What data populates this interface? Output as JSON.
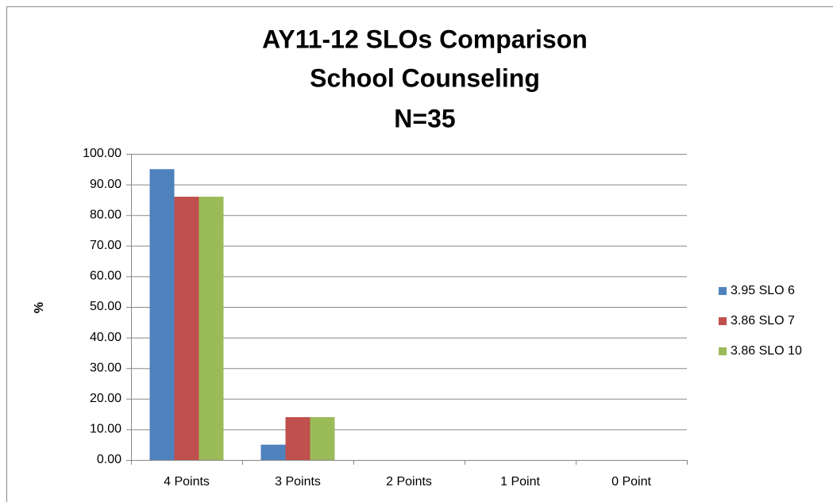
{
  "chart_data": {
    "type": "bar",
    "title": [
      "AY11-12 SLOs Comparison",
      "School Counseling",
      "N=35"
    ],
    "y_label": "%",
    "categories": [
      "4 Points",
      "3 Points",
      "2 Points",
      "1 Point",
      "0 Point"
    ],
    "series": [
      {
        "name": "3.95 SLO 6",
        "color": "#4f81bd",
        "values": [
          95,
          5,
          0,
          0,
          0
        ]
      },
      {
        "name": "3.86 SLO 7",
        "color": "#c0504d",
        "values": [
          86,
          14,
          0,
          0,
          0
        ]
      },
      {
        "name": "3.86 SLO 10",
        "color": "#9bbb59",
        "values": [
          86,
          14,
          0,
          0,
          0
        ]
      }
    ],
    "ylim": [
      0,
      100
    ],
    "yticks": [
      {
        "value": 0,
        "label": "0.00"
      },
      {
        "value": 10,
        "label": "10.00"
      },
      {
        "value": 20,
        "label": "20.00"
      },
      {
        "value": 30,
        "label": "30.00"
      },
      {
        "value": 40,
        "label": "40.00"
      },
      {
        "value": 50,
        "label": "50.00"
      },
      {
        "value": 60,
        "label": "60.00"
      },
      {
        "value": 70,
        "label": "70.00"
      },
      {
        "value": 80,
        "label": "80.00"
      },
      {
        "value": 90,
        "label": "90.00"
      },
      {
        "value": 100,
        "label": "100.00"
      }
    ],
    "grid": true,
    "legend": "right"
  }
}
